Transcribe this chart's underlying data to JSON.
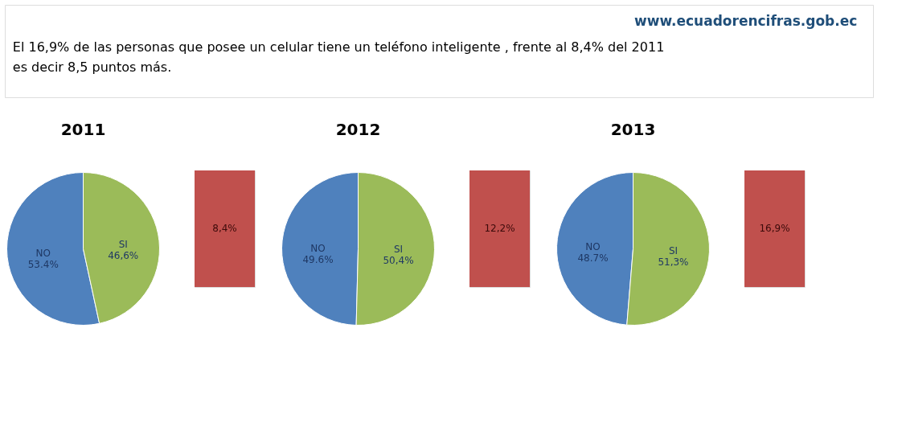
{
  "chart_data": [
    {
      "type": "other",
      "annotations": [
        "www.ecuadorencifras.gob.ec",
        "El 16,9% de las personas que posee un celular tiene un teléfono inteligente , frente al  8,4% del 2011",
        "es decir  8,5 puntos más."
      ]
    },
    {
      "type": "pie",
      "title": "2011",
      "categories": [
        "NO",
        "SI"
      ],
      "values": [
        53.4,
        46.6
      ],
      "colors": [
        "#4f81bd",
        "#9bbb59"
      ],
      "value_labels": [
        "53.4%",
        "46,6%"
      ]
    },
    {
      "type": "other",
      "colors": [
        "#c0504d"
      ],
      "annotations": [
        "8,4%"
      ]
    },
    {
      "type": "pie",
      "title": "2012",
      "categories": [
        "NO",
        "SI"
      ],
      "values": [
        49.6,
        50.4
      ],
      "colors": [
        "#4f81bd",
        "#9bbb59"
      ],
      "value_labels": [
        "49.6%",
        "50,4%"
      ]
    },
    {
      "type": "other",
      "colors": [
        "#c0504d"
      ],
      "annotations": [
        "12,2%"
      ]
    },
    {
      "type": "pie",
      "title": "2013",
      "categories": [
        "NO",
        "SI"
      ],
      "values": [
        48.7,
        51.3
      ],
      "colors": [
        "#4f81bd",
        "#9bbb59"
      ],
      "value_labels": [
        "48.7%",
        "51,3%"
      ]
    },
    {
      "type": "other",
      "colors": [
        "#c0504d"
      ],
      "annotations": [
        "16,9%"
      ]
    }
  ]
}
